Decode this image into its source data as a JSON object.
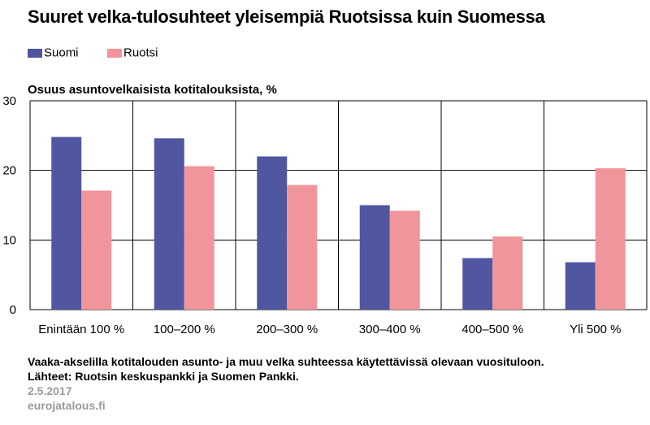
{
  "title": "Suuret velka-tulosuhteet yleisempiä Ruotsissa kuin Suomessa",
  "unit_label": "Osuus asuntovelkaisista kotitalouksista, %",
  "footer": {
    "note": "Vaaka-akselilla kotitalouden asunto- ja muu velka suhteessa käytettävissä olevaan vuosituloon.",
    "sources": "Lähteet: Ruotsin keskuspankki ja Suomen Pankki.",
    "date": "2.5.2017",
    "site": "eurojatalous.fi"
  },
  "chart_data": {
    "type": "bar",
    "title": "Suuret velka-tulosuhteet yleisempiä Ruotsissa kuin Suomessa",
    "ylabel": "Osuus asuntovelkaisista kotitalouksista, %",
    "xlabel": "",
    "ylim": [
      0,
      30
    ],
    "yticks": [
      0,
      10,
      20,
      30
    ],
    "grid": true,
    "legend_position": "top-left",
    "categories": [
      "Enintään 100 %",
      "100–200 %",
      "200–300 %",
      "300–400 %",
      "400–500 %",
      "Yli 500 %"
    ],
    "series": [
      {
        "name": "Suomi",
        "color": "#5156a0",
        "values": [
          24.8,
          24.6,
          22.0,
          15.0,
          7.4,
          6.8
        ]
      },
      {
        "name": "Ruotsi",
        "color": "#f0959b",
        "values": [
          17.1,
          20.6,
          17.9,
          14.2,
          10.5,
          20.3
        ]
      }
    ]
  }
}
